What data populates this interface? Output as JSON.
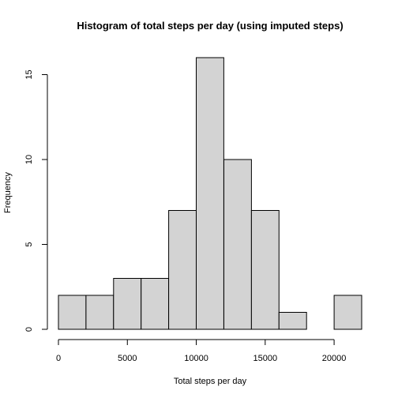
{
  "chart_data": {
    "type": "bar",
    "title": "Histogram of total steps per day (using imputed steps)",
    "xlabel": "Total steps per day",
    "ylabel": "Frequency",
    "bin_edges": [
      0,
      2000,
      4000,
      6000,
      8000,
      10000,
      12000,
      14000,
      16000,
      18000,
      20000,
      22000
    ],
    "values": [
      2,
      2,
      3,
      3,
      7,
      16,
      10,
      7,
      1,
      0,
      2
    ],
    "xlim": [
      0,
      22000
    ],
    "ylim": [
      0,
      16
    ],
    "x_ticks": [
      0,
      5000,
      10000,
      15000,
      20000
    ],
    "x_tick_labels": [
      "0",
      "5000",
      "10000",
      "15000",
      "20000"
    ],
    "y_ticks": [
      0,
      5,
      10,
      15
    ],
    "y_tick_labels": [
      "0",
      "5",
      "10",
      "15"
    ],
    "grid": false,
    "bar_color": "#d3d3d3",
    "edge_color": "#000000"
  }
}
